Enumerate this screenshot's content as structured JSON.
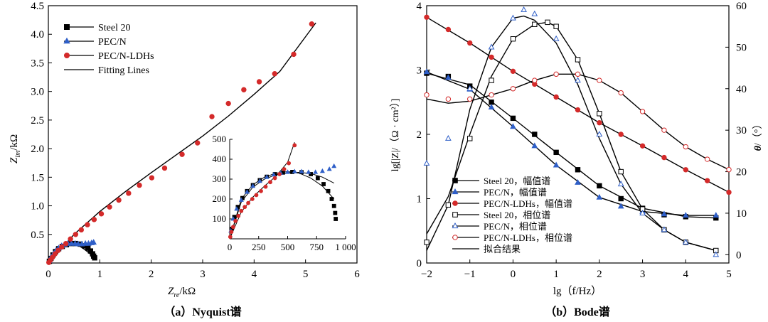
{
  "colors": {
    "black": "#000000",
    "blue": "#2f5fc8",
    "red": "#d42a2a",
    "fit": "#000000"
  },
  "chart_data": [
    {
      "type": "scatter",
      "panel": "a",
      "caption": "（a）Nyquist谱",
      "xlabel_main": "Z",
      "xlabel_sub": "re",
      "xlabel_unit": "/kΩ",
      "ylabel_main": "Z",
      "ylabel_sub": "im",
      "ylabel_unit": "/kΩ",
      "xlim": [
        0,
        6
      ],
      "ylim": [
        0,
        4.5
      ],
      "x_ticks": [
        "0",
        "1",
        "2",
        "3",
        "4",
        "5",
        "6"
      ],
      "y_ticks": [
        "0.5",
        "1.0",
        "1.5",
        "2.0",
        "2.5",
        "3.0",
        "3.5",
        "4.0",
        "4.5"
      ],
      "grid": false,
      "legend_position": "top-left",
      "legend": [
        {
          "label": "Steel 20",
          "marker": "square",
          "color": "black"
        },
        {
          "label": "PEC/N",
          "marker": "triangle",
          "color": "blue"
        },
        {
          "label": "PEC/N-LDHs",
          "marker": "circle",
          "color": "red"
        },
        {
          "label": "Fitting Lines",
          "marker": "none",
          "color": "fit"
        }
      ],
      "series": [
        {
          "name": "Steel 20",
          "marker": "square",
          "color": "black",
          "x": [
            0.02,
            0.05,
            0.09,
            0.14,
            0.2,
            0.27,
            0.35,
            0.44,
            0.53,
            0.62,
            0.7,
            0.77,
            0.82,
            0.86,
            0.88,
            0.9
          ],
          "y": [
            0.03,
            0.08,
            0.14,
            0.2,
            0.25,
            0.29,
            0.32,
            0.34,
            0.34,
            0.33,
            0.3,
            0.26,
            0.21,
            0.16,
            0.12,
            0.09
          ]
        },
        {
          "name": "PEC/N",
          "marker": "triangle",
          "color": "blue",
          "x": [
            0.02,
            0.05,
            0.1,
            0.15,
            0.2,
            0.26,
            0.32,
            0.38,
            0.45,
            0.52,
            0.58,
            0.65,
            0.72,
            0.78,
            0.84,
            0.88
          ],
          "y": [
            0.04,
            0.1,
            0.16,
            0.22,
            0.26,
            0.3,
            0.32,
            0.34,
            0.34,
            0.34,
            0.33,
            0.33,
            0.34,
            0.34,
            0.35,
            0.36
          ]
        },
        {
          "name": "PEC/N-LDHs",
          "marker": "circle",
          "color": "red",
          "x": [
            0.01,
            0.04,
            0.08,
            0.13,
            0.19,
            0.26,
            0.34,
            0.43,
            0.53,
            0.64,
            0.76,
            0.89,
            1.03,
            1.19,
            1.37,
            1.56,
            1.77,
            2.01,
            2.26,
            2.6,
            2.9,
            3.18,
            3.5,
            3.8,
            4.1,
            4.4,
            4.77,
            5.12
          ],
          "y": [
            0.01,
            0.05,
            0.1,
            0.16,
            0.22,
            0.28,
            0.34,
            0.42,
            0.5,
            0.58,
            0.67,
            0.76,
            0.86,
            0.98,
            1.1,
            1.22,
            1.36,
            1.49,
            1.66,
            1.9,
            2.1,
            2.56,
            2.79,
            3.03,
            3.17,
            3.31,
            3.65,
            4.18
          ]
        }
      ],
      "fits": [
        {
          "name": "Steel 20 fit",
          "x": [
            0.0,
            0.1,
            0.2,
            0.3,
            0.4,
            0.5,
            0.6,
            0.7,
            0.8,
            0.9
          ],
          "y": [
            0.0,
            0.17,
            0.25,
            0.3,
            0.33,
            0.33,
            0.3,
            0.24,
            0.17,
            0.08
          ]
        },
        {
          "name": "PEC/N-LDHs fit",
          "x": [
            0.0,
            0.25,
            0.5,
            1.0,
            1.5,
            2.0,
            2.5,
            3.0,
            3.5,
            4.0,
            4.5,
            5.2
          ],
          "y": [
            0.0,
            0.25,
            0.5,
            0.9,
            1.25,
            1.58,
            1.9,
            2.22,
            2.57,
            2.95,
            3.35,
            4.2
          ]
        }
      ],
      "inset": {
        "xlim": [
          0,
          1000
        ],
        "ylim": [
          0,
          500
        ],
        "x_ticks": [
          "0",
          "250",
          "500",
          "750",
          "1 000"
        ],
        "y_ticks": [
          "0",
          "100",
          "200",
          "300",
          "400",
          "500"
        ],
        "series": [
          {
            "name": "Steel 20",
            "marker": "square",
            "color": "black",
            "x": [
              15,
              40,
              70,
              110,
              150,
              200,
              260,
              320,
              390,
              460,
              540,
              620,
              700,
              760,
              810,
              850,
              880,
              900,
              910,
              915
            ],
            "y": [
              50,
              110,
              160,
              205,
              240,
              270,
              295,
              312,
              325,
              333,
              336,
              335,
              325,
              305,
              275,
              240,
              200,
              165,
              130,
              100
            ]
          },
          {
            "name": "PEC/N",
            "marker": "triangle",
            "color": "blue",
            "x": [
              10,
              30,
              60,
              100,
              150,
              200,
              260,
              320,
              380,
              440,
              500,
              560,
              620,
              680,
              740,
              800,
              860,
              900
            ],
            "y": [
              40,
              100,
              150,
              195,
              235,
              265,
              290,
              310,
              322,
              330,
              335,
              338,
              338,
              335,
              335,
              340,
              350,
              365
            ]
          },
          {
            "name": "PEC/N-LDHs",
            "marker": "circle",
            "color": "red",
            "x": [
              5,
              15,
              30,
              50,
              75,
              100,
              130,
              160,
              195,
              230,
              270,
              310,
              350,
              390,
              430,
              470,
              510,
              560
            ],
            "y": [
              10,
              35,
              60,
              90,
              115,
              140,
              160,
              180,
              200,
              220,
              240,
              262,
              285,
              305,
              325,
              350,
              380,
              470
            ]
          }
        ],
        "fits": [
          {
            "name": "PEC/N-LDHs fit",
            "x": [
              0,
              100,
              200,
              300,
              400,
              500,
              560
            ],
            "y": [
              0,
              135,
              210,
              265,
              315,
              385,
              485
            ]
          },
          {
            "name": "Steel 20 fit",
            "x": [
              0,
              100,
              200,
              300,
              400,
              500,
              600,
              700,
              800,
              900
            ],
            "y": [
              0,
              200,
              272,
              310,
              330,
              338,
              330,
              305,
              265,
              200
            ]
          },
          {
            "name": "PEC/N fit",
            "x": [
              0,
              100,
              200,
              300,
              400,
              500,
              600,
              700,
              800,
              900
            ],
            "y": [
              0,
              185,
              260,
              300,
              322,
              332,
              334,
              328,
              310,
              280
            ]
          }
        ]
      }
    },
    {
      "type": "scatter",
      "panel": "b",
      "caption": "（b）Bode谱",
      "xlabel": "lg（f/Hz）",
      "ylabel_left": "lg[|Z|/（Ω · cm²）]",
      "ylabel_right_main": "θ",
      "ylabel_right_unit": "/（°）",
      "xlim": [
        -2,
        5
      ],
      "ylim_left": [
        0,
        4
      ],
      "ylim_right": [
        -2,
        60
      ],
      "x_ticks": [
        "−2",
        "−1",
        "0",
        "1",
        "2",
        "3",
        "4",
        "5"
      ],
      "y_ticks_left": [
        "0",
        "1",
        "2",
        "3",
        "4"
      ],
      "y_ticks_right": [
        "0",
        "10",
        "20",
        "30",
        "40",
        "50",
        "60"
      ],
      "grid": false,
      "legend_position": "bottom-center",
      "legend": [
        {
          "label": "Steel 20，幅值谱",
          "marker": "square",
          "color": "black",
          "filled": true
        },
        {
          "label": "PEC/N，幅值谱",
          "marker": "triangle",
          "color": "blue",
          "filled": true
        },
        {
          "label": "PEC/N-LDHs，幅值谱",
          "marker": "circle",
          "color": "red",
          "filled": true
        },
        {
          "label": "Steel 20，相位谱",
          "marker": "square",
          "color": "black",
          "filled": false
        },
        {
          "label": "PEC/N，相位谱",
          "marker": "triangle",
          "color": "blue",
          "filled": false
        },
        {
          "label": "PEC/N-LDHs，相位谱",
          "marker": "circle",
          "color": "red",
          "filled": false
        },
        {
          "label": "拟合结果",
          "marker": "none",
          "color": "fit",
          "filled": false
        }
      ],
      "magnitude_series": [
        {
          "name": "Steel 20，幅值谱",
          "x": [
            -2,
            -1.5,
            -1,
            -0.5,
            0,
            0.5,
            1,
            1.5,
            2,
            2.5,
            3,
            3.5,
            4,
            4.7
          ],
          "y": [
            2.95,
            2.9,
            2.75,
            2.5,
            2.25,
            2.0,
            1.72,
            1.45,
            1.2,
            1.0,
            0.85,
            0.75,
            0.72,
            0.7
          ]
        },
        {
          "name": "PEC/N，幅值谱",
          "x": [
            -2,
            -1.5,
            -1,
            -0.5,
            0,
            0.5,
            1,
            1.5,
            2,
            2.5,
            3,
            3.5,
            4,
            4.7
          ],
          "y": [
            2.97,
            2.88,
            2.7,
            2.42,
            2.12,
            1.82,
            1.52,
            1.25,
            1.02,
            0.88,
            0.8,
            0.76,
            0.74,
            0.74
          ]
        },
        {
          "name": "PEC/N-LDHs，幅值谱",
          "x": [
            -2,
            -1.5,
            -1,
            -0.5,
            0,
            0.5,
            1,
            1.5,
            2,
            2.5,
            3,
            3.5,
            4,
            4.5,
            5
          ],
          "y": [
            3.82,
            3.63,
            3.42,
            3.2,
            2.98,
            2.78,
            2.58,
            2.38,
            2.18,
            2.0,
            1.82,
            1.64,
            1.45,
            1.28,
            1.1
          ]
        }
      ],
      "phase_series": [
        {
          "name": "Steel 20，相位谱",
          "x": [
            -2,
            -1.5,
            -1,
            -0.5,
            0,
            0.5,
            0.8,
            1,
            1.5,
            2,
            2.5,
            3,
            3.5,
            4,
            4.7
          ],
          "y": [
            3,
            12,
            28,
            42,
            52,
            55.5,
            56,
            55,
            47,
            34,
            20,
            11,
            6,
            3,
            1
          ]
        },
        {
          "name": "PEC/N，相位谱",
          "x": [
            -2,
            -1.5,
            -1,
            -0.5,
            0,
            0.25,
            0.5,
            1,
            1.5,
            2,
            2.5,
            3,
            3.5,
            4,
            4.7
          ],
          "y": [
            22,
            28,
            40,
            50,
            57,
            59,
            58,
            52,
            42,
            29,
            17,
            10,
            6,
            3,
            0
          ]
        },
        {
          "name": "PEC/N-LDHs，相位谱",
          "x": [
            -2,
            -1.5,
            -1,
            -0.5,
            0,
            0.5,
            1,
            1.5,
            2,
            2.5,
            3,
            3.5,
            4,
            4.5,
            5
          ],
          "y": [
            38.5,
            37.5,
            37.5,
            38.5,
            40,
            42,
            43.5,
            43.5,
            42,
            39,
            34.5,
            30,
            26,
            23,
            20.5
          ]
        }
      ],
      "magnitude_fits": [
        {
          "name": "Steel 20 fit",
          "x": [
            -2,
            -1,
            0,
            1,
            2,
            3,
            4,
            4.7
          ],
          "y": [
            2.95,
            2.77,
            2.25,
            1.72,
            1.2,
            0.85,
            0.72,
            0.7
          ]
        },
        {
          "name": "PEC/N fit",
          "x": [
            -2,
            -1,
            0,
            1,
            2,
            3,
            4,
            4.7
          ],
          "y": [
            2.97,
            2.7,
            2.12,
            1.52,
            1.02,
            0.8,
            0.74,
            0.74
          ]
        },
        {
          "name": "PEC/N-LDHs fit",
          "x": [
            -2,
            -1,
            0,
            1,
            2,
            3,
            4,
            5
          ],
          "y": [
            3.82,
            3.42,
            2.98,
            2.58,
            2.18,
            1.82,
            1.45,
            1.1
          ]
        }
      ],
      "phase_fits": [
        {
          "name": "Steel 20 fit",
          "x": [
            -2,
            -1.5,
            -1,
            -0.5,
            0,
            0.5,
            0.8,
            1,
            1.5,
            2,
            2.5,
            3,
            3.5,
            4,
            4.7
          ],
          "y": [
            5,
            14,
            29,
            43,
            52,
            55.5,
            56,
            55,
            47,
            34,
            20,
            11,
            6,
            3,
            1
          ]
        },
        {
          "name": "PEC/N fit",
          "x": [
            -2,
            -1.5,
            -1,
            -0.5,
            0,
            0.25,
            0.5,
            1,
            1.5,
            2,
            2.5,
            3,
            3.5,
            4,
            4.7
          ],
          "y": [
            1,
            12,
            35,
            50,
            57,
            57.5,
            56.5,
            51,
            41,
            28,
            17,
            10,
            6,
            3,
            1
          ]
        },
        {
          "name": "PEC/N-LDHs fit",
          "x": [
            -2,
            -1.5,
            -1,
            -0.5,
            0,
            0.5,
            1,
            1.5,
            2,
            2.5,
            3,
            3.5,
            4,
            4.5,
            5
          ],
          "y": [
            37.5,
            36.5,
            37,
            38.5,
            40,
            42,
            43.5,
            43.5,
            42,
            39,
            34.5,
            30,
            26,
            23,
            20.5
          ]
        }
      ]
    }
  ]
}
